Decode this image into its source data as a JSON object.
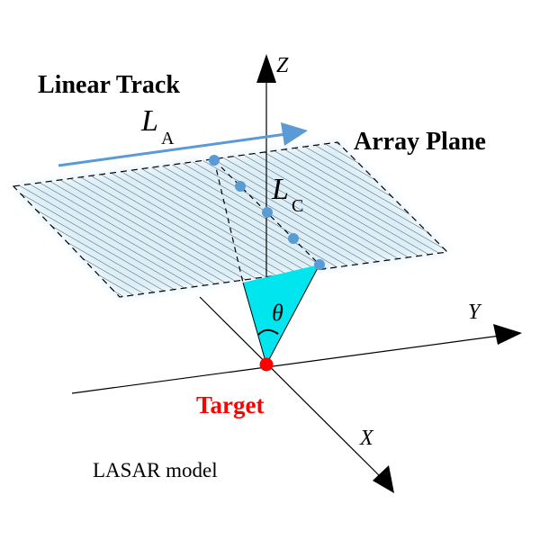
{
  "labels": {
    "linear_track": "Linear Track",
    "array_plane": "Array Plane",
    "target": "Target",
    "model": "LASAR model",
    "axis_z": "Z",
    "axis_y": "Y",
    "axis_x": "X",
    "theta": "θ",
    "la_main": "L",
    "la_sub": "A",
    "lc_main": "L",
    "lc_sub": "C"
  },
  "colors": {
    "track_arrow": "#5b9bd5",
    "element_dots": "#5b9bd5",
    "target_dot": "#ff0000",
    "target_text": "#ff0000",
    "beam_fill": "#00e5ee",
    "plane_glow": "#d9eef9",
    "hatch": "#555555",
    "ink": "#000000"
  }
}
